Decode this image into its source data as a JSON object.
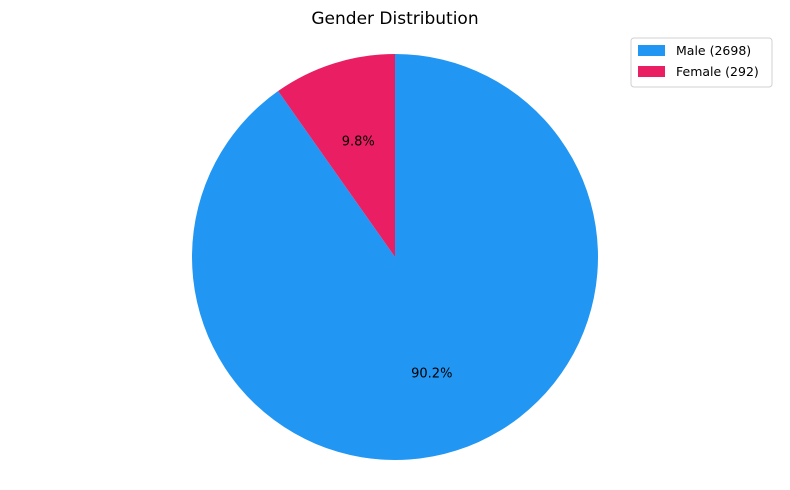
{
  "chart_data": {
    "type": "pie",
    "title": "Gender Distribution",
    "categories": [
      "Male",
      "Female"
    ],
    "values": [
      2698,
      292
    ],
    "percent_labels": [
      "90.2%",
      "9.8%"
    ],
    "legend_labels": [
      "Male (2698)",
      "Female (292)"
    ],
    "colors": [
      "#2196F3",
      "#E91E63"
    ],
    "start_angle_deg": 90,
    "direction": "clockwise",
    "legend_position": "top-right"
  }
}
